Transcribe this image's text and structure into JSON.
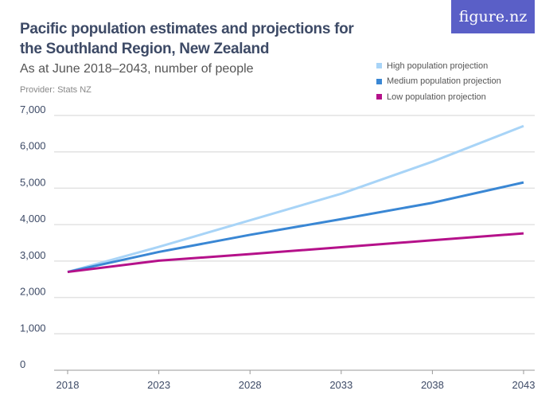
{
  "header": {
    "title": "Pacific population estimates and projections for the Southland Region, New Zealand",
    "subtitle": "As at June 2018–2043, number of people",
    "provider": "Provider: Stats NZ",
    "logo": "figure.nz"
  },
  "chart_data": {
    "type": "line",
    "title": "Pacific population estimates and projections for the Southland Region, New Zealand",
    "subtitle": "As at June 2018–2043, number of people",
    "x": [
      2018,
      2023,
      2028,
      2033,
      2038,
      2043
    ],
    "x_tick_labels": [
      "2018",
      "2023",
      "2028",
      "2033",
      "2038",
      "2043"
    ],
    "y_tick_labels": [
      "0",
      "1,000",
      "2,000",
      "3,000",
      "4,000",
      "5,000",
      "6,000",
      "7,000"
    ],
    "y_ticks": [
      0,
      1000,
      2000,
      3000,
      4000,
      5000,
      6000,
      7000
    ],
    "ylim": [
      0,
      7000
    ],
    "grid": true,
    "legend_position": "top-right",
    "series": [
      {
        "name": "High population projection",
        "color": "#a8d4f7",
        "values": [
          2700,
          3390,
          4120,
          4850,
          5730,
          6710
        ]
      },
      {
        "name": "Medium population projection",
        "color": "#3a87d4",
        "values": [
          2700,
          3250,
          3720,
          4150,
          4600,
          5160
        ]
      },
      {
        "name": "Low population projection",
        "color": "#b5118a",
        "values": [
          2700,
          3010,
          3190,
          3380,
          3570,
          3760
        ]
      }
    ]
  }
}
